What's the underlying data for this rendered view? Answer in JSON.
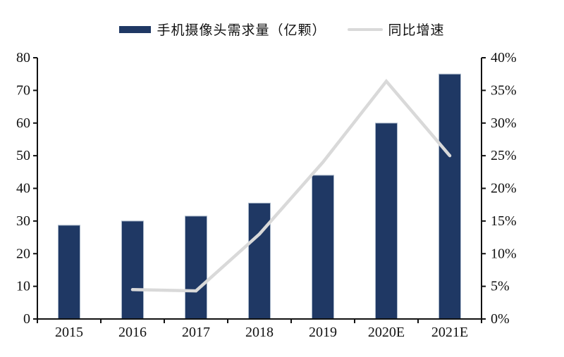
{
  "legend": {
    "bar_label": "手机摄像头需求量（亿颗）",
    "line_label": "同比增速"
  },
  "colors": {
    "bar": "#1f3864",
    "bar_border": "#a8b7c9",
    "line": "#d9d9d9",
    "axis": "#111111",
    "text": "#111111"
  },
  "chart_data": {
    "type": "bar",
    "subtype": "bar+line dual axis",
    "title": "",
    "categories": [
      "2015",
      "2016",
      "2017",
      "2018",
      "2019",
      "2020E",
      "2021E"
    ],
    "series": [
      {
        "name": "手机摄像头需求量（亿颗）",
        "type": "bar",
        "axis": "left",
        "values": [
          28.7,
          30,
          31.5,
          35.5,
          44,
          60,
          75
        ]
      },
      {
        "name": "同比增速",
        "type": "line",
        "axis": "right",
        "unit": "%",
        "values": [
          null,
          4.5,
          4.3,
          13,
          24,
          36.4,
          25
        ]
      }
    ],
    "left_axis": {
      "min": 0,
      "max": 80,
      "tick_values": [
        0,
        10,
        20,
        30,
        40,
        50,
        60,
        70,
        80
      ],
      "tick_labels": [
        "0",
        "10",
        "20",
        "30",
        "40",
        "50",
        "60",
        "70",
        "80"
      ]
    },
    "right_axis": {
      "min": 0,
      "max": 40,
      "tick_values": [
        0,
        5,
        10,
        15,
        20,
        25,
        30,
        35,
        40
      ],
      "tick_labels": [
        "0%",
        "5%",
        "10%",
        "15%",
        "20%",
        "25%",
        "30%",
        "35%",
        "40%"
      ]
    },
    "grid": false,
    "legend_position": "top"
  }
}
